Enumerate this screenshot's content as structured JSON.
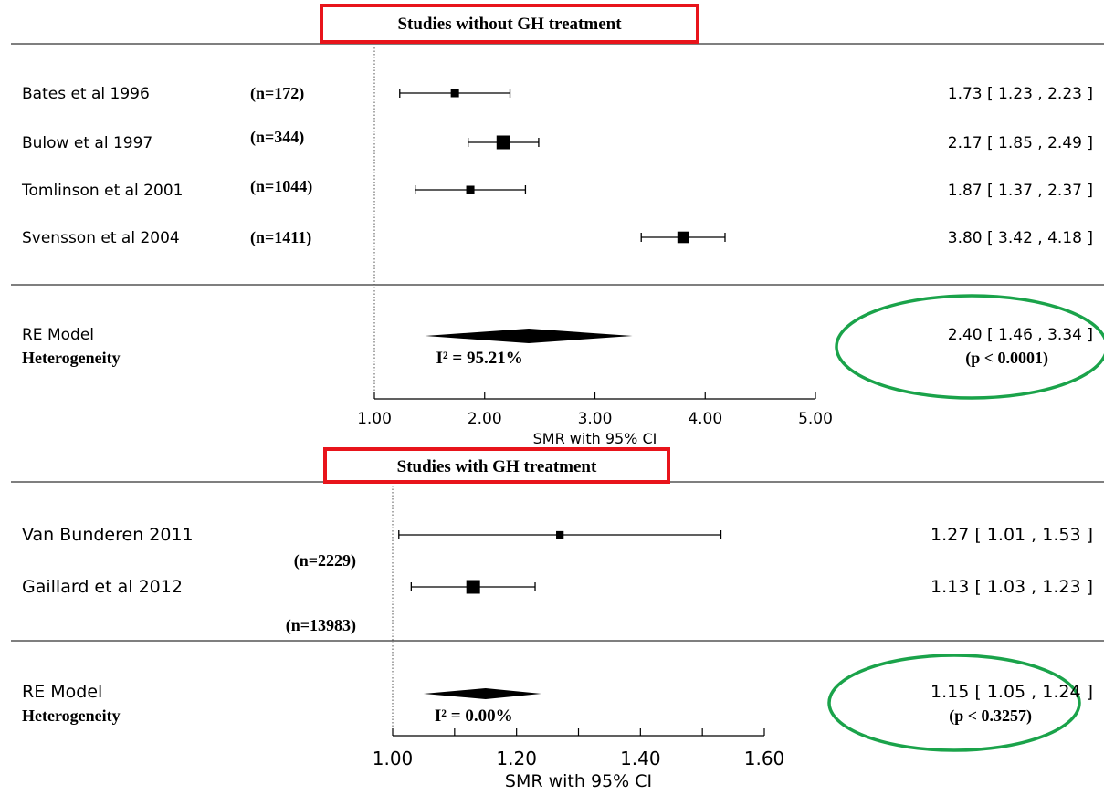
{
  "chart_data": [
    {
      "type": "forest",
      "title": "Studies without GH treatment",
      "xlabel": "SMR with 95% CI",
      "ref_line": 1.0,
      "xlim": [
        1.0,
        5.0
      ],
      "ticks": [
        1.0,
        2.0,
        3.0,
        4.0,
        5.0
      ],
      "tick_labels": [
        "1.00",
        "2.00",
        "3.00",
        "4.00",
        "5.00"
      ],
      "studies": [
        {
          "name": "Bates et al 1996",
          "n": "(n=172)",
          "est": 1.73,
          "lo": 1.23,
          "hi": 2.23,
          "weight": 0.25,
          "ci_text": "1.73 [ 1.23 , 2.23 ]"
        },
        {
          "name": "Bulow et al 1997",
          "n": "(n=344)",
          "est": 2.17,
          "lo": 1.85,
          "hi": 2.49,
          "weight": 1.0,
          "ci_text": "2.17 [ 1.85 , 2.49 ]"
        },
        {
          "name": "Tomlinson et al 2001",
          "n": "(n=1044)",
          "est": 1.87,
          "lo": 1.37,
          "hi": 2.37,
          "weight": 0.25,
          "ci_text": "1.87 [ 1.37 , 2.37 ]"
        },
        {
          "name": "Svensson et al 2004",
          "n": "(n=1411)",
          "est": 3.8,
          "lo": 3.42,
          "hi": 4.18,
          "weight": 0.7,
          "ci_text": "3.80 [ 3.42 , 4.18 ]"
        }
      ],
      "summary": {
        "label": "RE Model",
        "est": 2.4,
        "lo": 1.46,
        "hi": 3.34,
        "ci_text": "2.40 [ 1.46 , 3.34 ]"
      },
      "heterogeneity": {
        "label": "Heterogeneity",
        "i2": "I² = 95.21%",
        "p": "(p < 0.0001)"
      },
      "highlight_colors": {
        "title_box": "#e8141b",
        "summary_ellipse": "#1aa34a"
      }
    },
    {
      "type": "forest",
      "title": "Studies with GH treatment",
      "xlabel": "SMR with 95% CI",
      "ref_line": 1.0,
      "xlim": [
        1.0,
        1.6
      ],
      "ticks": [
        1.0,
        1.1,
        1.2,
        1.3,
        1.4,
        1.5,
        1.6
      ],
      "tick_labels": [
        "1.00",
        "",
        "1.20",
        "",
        "1.40",
        "",
        "1.60"
      ],
      "studies": [
        {
          "name": "Van Bunderen 2011",
          "n": "(n=2229)",
          "est": 1.27,
          "lo": 1.01,
          "hi": 1.53,
          "weight": 0.25,
          "ci_text": "1.27 [ 1.01 , 1.53 ]"
        },
        {
          "name": "Gaillard et al 2012",
          "n": "(n=13983)",
          "est": 1.13,
          "lo": 1.03,
          "hi": 1.23,
          "weight": 1.0,
          "ci_text": "1.13 [ 1.03 , 1.23 ]"
        }
      ],
      "summary": {
        "label": "RE Model",
        "est": 1.15,
        "lo": 1.05,
        "hi": 1.24,
        "ci_text": "1.15 [ 1.05 , 1.24 ]"
      },
      "heterogeneity": {
        "label": "Heterogeneity",
        "i2": "I² = 0.00%",
        "p": "(p < 0.3257)"
      },
      "highlight_colors": {
        "title_box": "#e8141b",
        "summary_ellipse": "#1aa34a"
      }
    }
  ]
}
